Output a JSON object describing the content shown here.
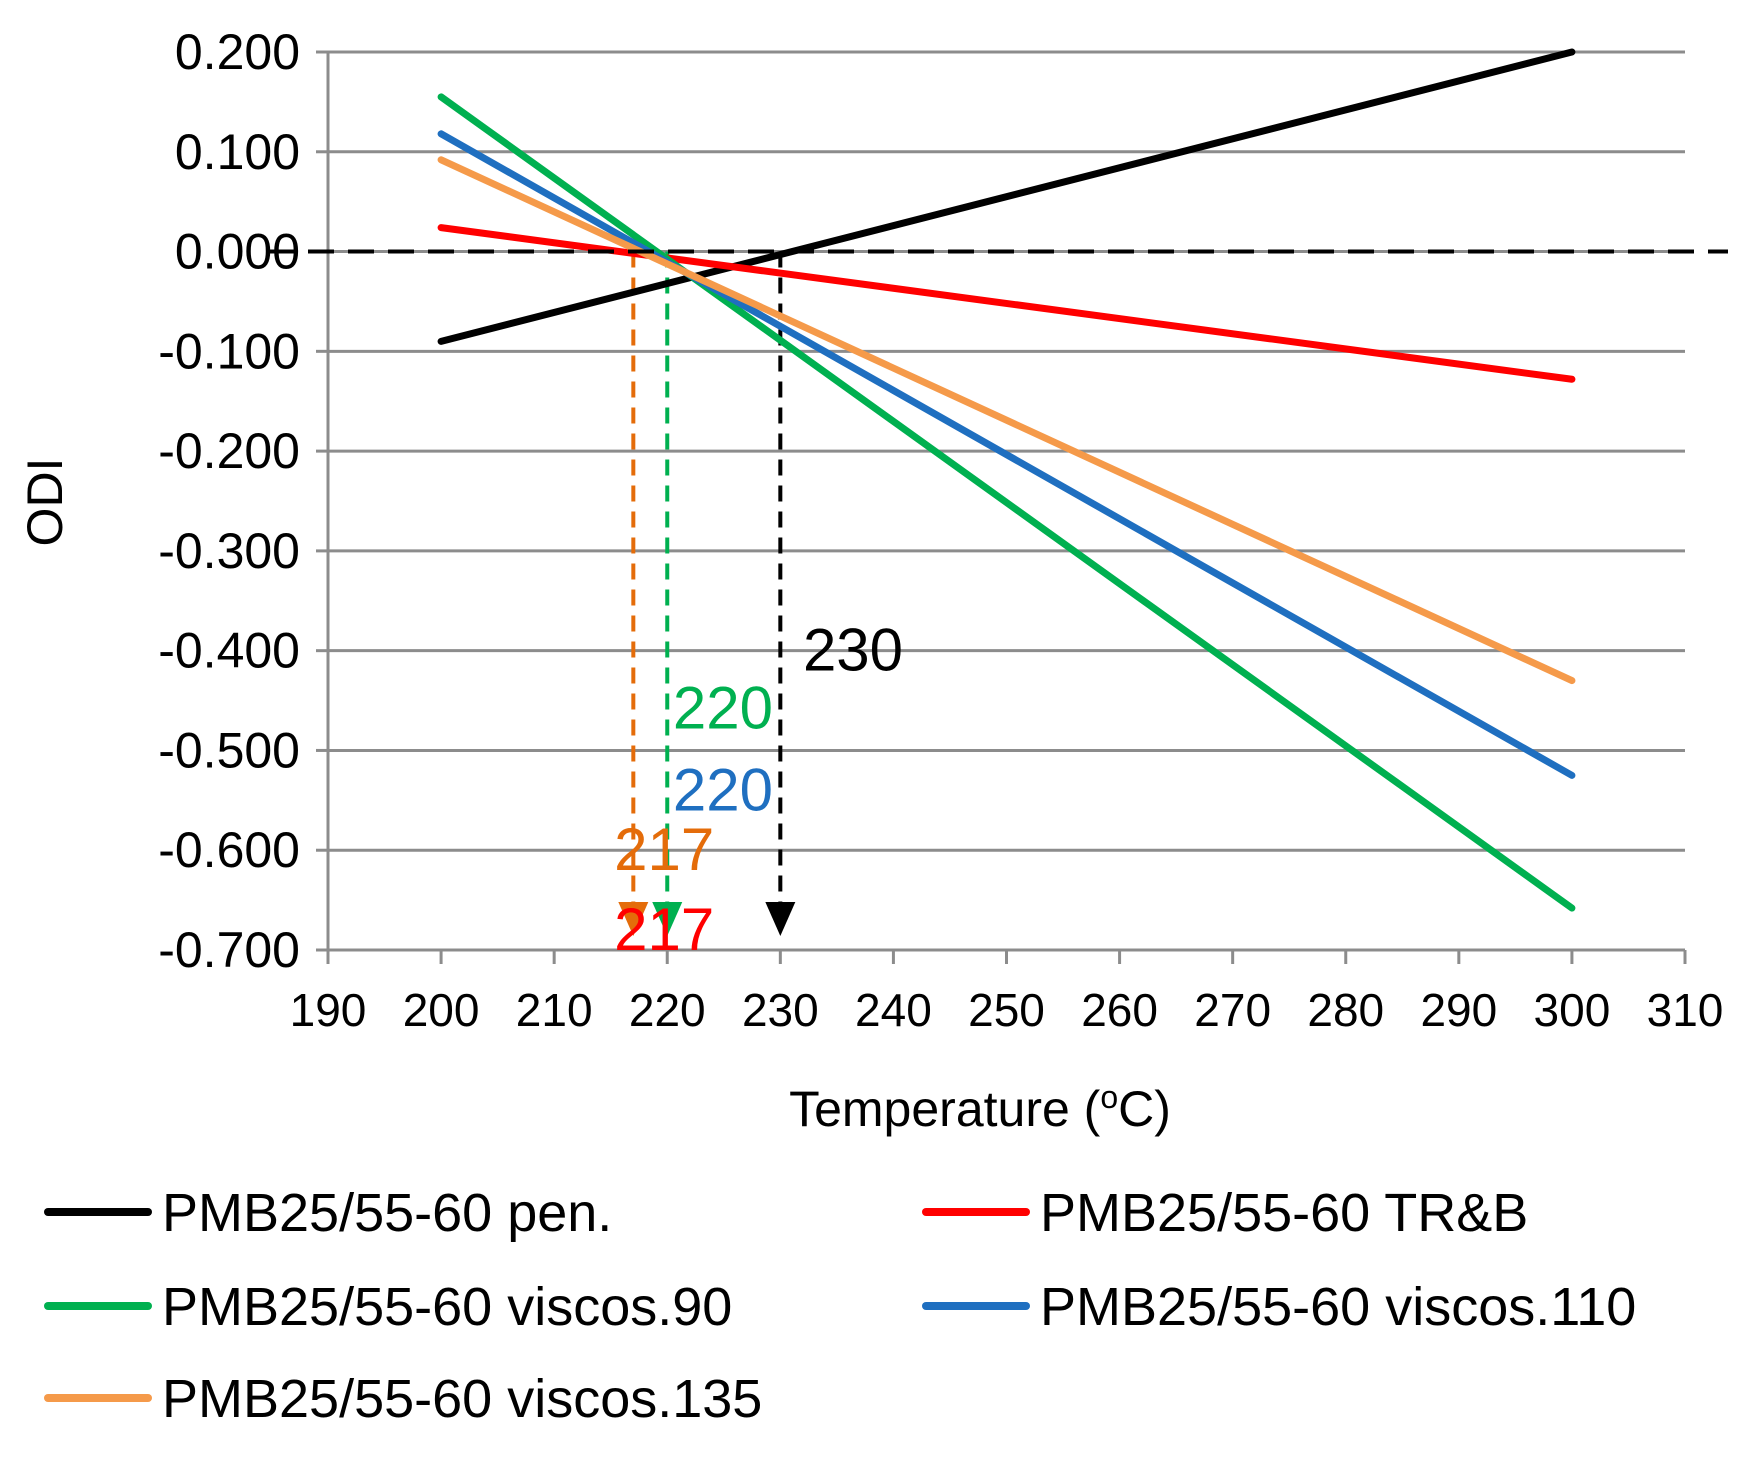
{
  "chart_data": {
    "type": "line",
    "title": "",
    "xlabel": "Temperature (",
    "xlabel_sup": "o",
    "xlabel_suffix": "C)",
    "ylabel": "ODI",
    "xlim": [
      190,
      310
    ],
    "ylim": [
      -0.7,
      0.2
    ],
    "x_ticks": [
      190,
      200,
      210,
      220,
      230,
      240,
      250,
      260,
      270,
      280,
      290,
      300,
      310
    ],
    "x_tick_labels": [
      "190",
      "200",
      "210",
      "220",
      "230",
      "240",
      "250",
      "260",
      "270",
      "280",
      "290",
      "300",
      "310"
    ],
    "y_ticks": [
      0.2,
      0.1,
      0.0,
      -0.1,
      -0.2,
      -0.3,
      -0.4,
      -0.5,
      -0.6,
      -0.7
    ],
    "y_tick_labels": [
      "0.200",
      "0.100",
      "0.000",
      "-0.100",
      "-0.200",
      "-0.300",
      "-0.400",
      "-0.500",
      "-0.600",
      "-0.700"
    ],
    "grid": "horizontal",
    "series": [
      {
        "name": "PMB25/55-60 pen.",
        "color": "#000000",
        "x": [
          200,
          300
        ],
        "y": [
          -0.09,
          0.2
        ]
      },
      {
        "name": "PMB25/55-60 TR&B",
        "color": "#ff0000",
        "x": [
          200,
          300
        ],
        "y": [
          0.024,
          -0.128
        ]
      },
      {
        "name": "PMB25/55-60 viscos.90",
        "color": "#00b050",
        "x": [
          200,
          300
        ],
        "y": [
          0.155,
          -0.658
        ]
      },
      {
        "name": "PMB25/55-60 viscos.110",
        "color": "#1f6fc0",
        "x": [
          200,
          300
        ],
        "y": [
          0.118,
          -0.525
        ]
      },
      {
        "name": "PMB25/55-60 viscos.135",
        "color": "#f59a4a",
        "x": [
          200,
          300
        ],
        "y": [
          0.092,
          -0.43
        ]
      }
    ],
    "zero_reference": {
      "y": 0.0,
      "color": "#000000",
      "style": "dashed"
    },
    "drop_lines": [
      {
        "x": 217,
        "color": "#e46c0a"
      },
      {
        "x": 220,
        "color": "#00b050"
      },
      {
        "x": 230,
        "color": "#000000"
      }
    ],
    "annotations": [
      {
        "text": "230",
        "x": 232,
        "y": -0.4,
        "color": "#000000"
      },
      {
        "text": "220",
        "x": 220.5,
        "y": -0.458,
        "color": "#00b050"
      },
      {
        "text": "220",
        "x": 220.5,
        "y": -0.54,
        "color": "#1f6fc0"
      },
      {
        "text": "217",
        "x": 215.3,
        "y": -0.6,
        "color": "#e46c0a"
      },
      {
        "text": "217",
        "x": 215.3,
        "y": -0.68,
        "color": "#ff0000"
      }
    ],
    "legend": {
      "placement": "bottom",
      "columns": 2,
      "entries": [
        "PMB25/55-60 pen.",
        "PMB25/55-60 TR&B",
        "PMB25/55-60 viscos.90",
        "PMB25/55-60 viscos.110",
        "PMB25/55-60 viscos.135"
      ]
    }
  }
}
